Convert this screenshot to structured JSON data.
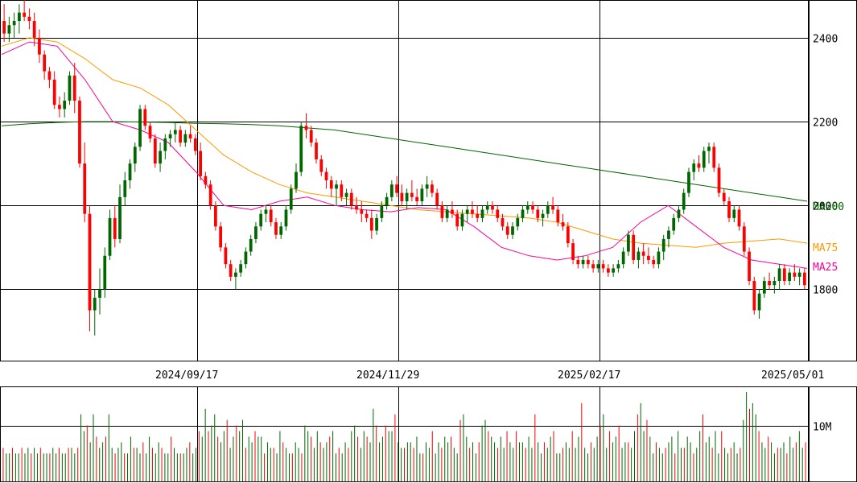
{
  "chart_data": [
    {
      "type": "candlestick",
      "x_dates": [
        "2024/09/17",
        "2024/11/29",
        "2025/02/17",
        "2025/05/01"
      ],
      "ylim": [
        1630,
        2490
      ],
      "y_ticks": [
        1800,
        2000,
        2200,
        2400
      ],
      "y_tick_labels": [
        "1800",
        "2000",
        "2200",
        "2400"
      ],
      "grid": true,
      "up_color": "#006600",
      "down_color": "#ff0000",
      "ohlc": [
        [
          2440,
          2480,
          2390,
          2410
        ],
        [
          2410,
          2450,
          2390,
          2430
        ],
        [
          2430,
          2460,
          2400,
          2440
        ],
        [
          2440,
          2480,
          2410,
          2460
        ],
        [
          2460,
          2490,
          2440,
          2450
        ],
        [
          2450,
          2470,
          2420,
          2440
        ],
        [
          2440,
          2460,
          2380,
          2400
        ],
        [
          2400,
          2420,
          2340,
          2360
        ],
        [
          2360,
          2370,
          2300,
          2320
        ],
        [
          2320,
          2330,
          2280,
          2300
        ],
        [
          2300,
          2320,
          2230,
          2240
        ],
        [
          2240,
          2260,
          2210,
          2230
        ],
        [
          2230,
          2270,
          2210,
          2250
        ],
        [
          2250,
          2320,
          2240,
          2310
        ],
        [
          2310,
          2340,
          2220,
          2250
        ],
        [
          2250,
          2260,
          2090,
          2100
        ],
        [
          2100,
          2150,
          1960,
          1980
        ],
        [
          1980,
          2000,
          1700,
          1750
        ],
        [
          1750,
          1800,
          1690,
          1780
        ],
        [
          1780,
          1850,
          1740,
          1800
        ],
        [
          1800,
          1900,
          1780,
          1880
        ],
        [
          1880,
          1990,
          1870,
          1970
        ],
        [
          1970,
          2000,
          1900,
          1920
        ],
        [
          1920,
          2050,
          1910,
          2020
        ],
        [
          2020,
          2080,
          2000,
          2060
        ],
        [
          2060,
          2110,
          2040,
          2100
        ],
        [
          2100,
          2150,
          2080,
          2140
        ],
        [
          2140,
          2240,
          2130,
          2230
        ],
        [
          2230,
          2240,
          2180,
          2190
        ],
        [
          2190,
          2200,
          2150,
          2160
        ],
        [
          2160,
          2170,
          2090,
          2100
        ],
        [
          2100,
          2150,
          2080,
          2130
        ],
        [
          2130,
          2170,
          2110,
          2160
        ],
        [
          2160,
          2180,
          2140,
          2170
        ],
        [
          2170,
          2200,
          2150,
          2180
        ],
        [
          2180,
          2190,
          2140,
          2150
        ],
        [
          2150,
          2180,
          2140,
          2170
        ],
        [
          2170,
          2190,
          2150,
          2160
        ],
        [
          2160,
          2170,
          2120,
          2130
        ],
        [
          2130,
          2150,
          2060,
          2070
        ],
        [
          2070,
          2080,
          2040,
          2050
        ],
        [
          2050,
          2060,
          1990,
          2000
        ],
        [
          2000,
          2010,
          1940,
          1950
        ],
        [
          1950,
          1960,
          1890,
          1900
        ],
        [
          1900,
          1910,
          1850,
          1860
        ],
        [
          1860,
          1870,
          1820,
          1830
        ],
        [
          1830,
          1850,
          1800,
          1840
        ],
        [
          1840,
          1870,
          1830,
          1860
        ],
        [
          1860,
          1900,
          1850,
          1890
        ],
        [
          1890,
          1930,
          1880,
          1920
        ],
        [
          1920,
          1960,
          1910,
          1950
        ],
        [
          1950,
          1990,
          1940,
          1980
        ],
        [
          1980,
          2000,
          1960,
          1990
        ],
        [
          1990,
          2000,
          1950,
          1960
        ],
        [
          1960,
          1970,
          1920,
          1930
        ],
        [
          1930,
          1960,
          1920,
          1950
        ],
        [
          1950,
          2000,
          1940,
          1990
        ],
        [
          1990,
          2050,
          1980,
          2040
        ],
        [
          2040,
          2100,
          2030,
          2080
        ],
        [
          2080,
          2200,
          2070,
          2190
        ],
        [
          2190,
          2220,
          2160,
          2180
        ],
        [
          2180,
          2190,
          2140,
          2150
        ],
        [
          2150,
          2160,
          2100,
          2110
        ],
        [
          2110,
          2120,
          2070,
          2080
        ],
        [
          2080,
          2090,
          2040,
          2060
        ],
        [
          2060,
          2070,
          2020,
          2040
        ],
        [
          2040,
          2060,
          2000,
          2050
        ],
        [
          2050,
          2060,
          2010,
          2020
        ],
        [
          2020,
          2040,
          2000,
          2030
        ],
        [
          2030,
          2040,
          1990,
          2000
        ],
        [
          2000,
          2020,
          1980,
          1990
        ],
        [
          1990,
          2010,
          1960,
          1980
        ],
        [
          1980,
          1990,
          1960,
          1970
        ],
        [
          1970,
          1990,
          1920,
          1940
        ],
        [
          1940,
          1980,
          1930,
          1970
        ],
        [
          1970,
          2010,
          1960,
          2000
        ],
        [
          2000,
          2030,
          1990,
          2020
        ],
        [
          2020,
          2060,
          2010,
          2050
        ],
        [
          2050,
          2070,
          2020,
          2030
        ],
        [
          2030,
          2050,
          2000,
          2010
        ],
        [
          2010,
          2040,
          1990,
          2030
        ],
        [
          2030,
          2060,
          2010,
          2020
        ],
        [
          2020,
          2040,
          2000,
          2010
        ],
        [
          2010,
          2050,
          2000,
          2040
        ],
        [
          2040,
          2070,
          2020,
          2050
        ],
        [
          2050,
          2060,
          2020,
          2030
        ],
        [
          2030,
          2040,
          1990,
          2000
        ],
        [
          2000,
          2010,
          1960,
          1970
        ],
        [
          1970,
          2000,
          1960,
          1990
        ],
        [
          1990,
          2010,
          1970,
          1980
        ],
        [
          1980,
          1990,
          1940,
          1950
        ],
        [
          1950,
          1990,
          1940,
          1980
        ],
        [
          1980,
          2000,
          1960,
          1990
        ],
        [
          1990,
          2010,
          1970,
          1980
        ],
        [
          1980,
          2000,
          1960,
          1970
        ],
        [
          1970,
          2000,
          1960,
          1990
        ],
        [
          1990,
          2010,
          1980,
          2000
        ],
        [
          2000,
          2010,
          1980,
          1990
        ],
        [
          1990,
          2000,
          1960,
          1970
        ],
        [
          1970,
          1980,
          1940,
          1950
        ],
        [
          1950,
          1960,
          1920,
          1930
        ],
        [
          1930,
          1960,
          1920,
          1950
        ],
        [
          1950,
          1980,
          1940,
          1970
        ],
        [
          1970,
          2000,
          1960,
          1990
        ],
        [
          1990,
          2010,
          1980,
          2000
        ],
        [
          2000,
          2010,
          1980,
          1990
        ],
        [
          1990,
          2000,
          1960,
          1970
        ],
        [
          1970,
          1990,
          1950,
          1980
        ],
        [
          1980,
          2010,
          1970,
          2000
        ],
        [
          2000,
          2020,
          1980,
          1990
        ],
        [
          1990,
          2000,
          1950,
          1960
        ],
        [
          1960,
          1980,
          1940,
          1950
        ],
        [
          1950,
          1960,
          1900,
          1910
        ],
        [
          1910,
          1920,
          1860,
          1870
        ],
        [
          1870,
          1880,
          1850,
          1860
        ],
        [
          1860,
          1880,
          1850,
          1870
        ],
        [
          1870,
          1880,
          1850,
          1860
        ],
        [
          1860,
          1870,
          1840,
          1850
        ],
        [
          1850,
          1870,
          1840,
          1860
        ],
        [
          1860,
          1870,
          1840,
          1850
        ],
        [
          1850,
          1860,
          1830,
          1840
        ],
        [
          1840,
          1860,
          1830,
          1850
        ],
        [
          1850,
          1870,
          1840,
          1860
        ],
        [
          1860,
          1900,
          1850,
          1890
        ],
        [
          1890,
          1940,
          1880,
          1930
        ],
        [
          1930,
          1940,
          1860,
          1870
        ],
        [
          1870,
          1900,
          1850,
          1890
        ],
        [
          1890,
          1910,
          1860,
          1880
        ],
        [
          1880,
          1900,
          1860,
          1870
        ],
        [
          1870,
          1880,
          1850,
          1860
        ],
        [
          1860,
          1900,
          1850,
          1890
        ],
        [
          1890,
          1930,
          1870,
          1920
        ],
        [
          1920,
          1950,
          1900,
          1940
        ],
        [
          1940,
          1980,
          1930,
          1970
        ],
        [
          1970,
          2000,
          1960,
          1990
        ],
        [
          1990,
          2040,
          1980,
          2030
        ],
        [
          2030,
          2090,
          2020,
          2080
        ],
        [
          2080,
          2110,
          2060,
          2100
        ],
        [
          2100,
          2120,
          2080,
          2090
        ],
        [
          2090,
          2140,
          2080,
          2130
        ],
        [
          2130,
          2150,
          2100,
          2140
        ],
        [
          2140,
          2150,
          2080,
          2090
        ],
        [
          2090,
          2100,
          2020,
          2030
        ],
        [
          2030,
          2040,
          2000,
          2010
        ],
        [
          2010,
          2020,
          1960,
          1970
        ],
        [
          1970,
          2000,
          1960,
          1990
        ],
        [
          1990,
          2000,
          1940,
          1950
        ],
        [
          1950,
          1960,
          1880,
          1890
        ],
        [
          1890,
          1900,
          1810,
          1820
        ],
        [
          1820,
          1830,
          1740,
          1750
        ],
        [
          1750,
          1800,
          1730,
          1790
        ],
        [
          1790,
          1830,
          1780,
          1820
        ],
        [
          1820,
          1840,
          1800,
          1810
        ],
        [
          1810,
          1830,
          1790,
          1820
        ],
        [
          1820,
          1860,
          1800,
          1850
        ],
        [
          1850,
          1860,
          1810,
          1820
        ],
        [
          1820,
          1850,
          1810,
          1840
        ],
        [
          1840,
          1860,
          1820,
          1830
        ],
        [
          1830,
          1850,
          1810,
          1840
        ],
        [
          1840,
          1850,
          1800,
          1810
        ]
      ],
      "ma": [
        {
          "name": "MA200",
          "color": "#006600",
          "values": [
            2190,
            2195,
            2198,
            2200,
            2200,
            2199,
            2198,
            2196,
            2195,
            2193,
            2190,
            2185,
            2180,
            2170,
            2160,
            2150,
            2140,
            2130,
            2120,
            2110,
            2100,
            2090,
            2080,
            2070,
            2060,
            2050,
            2040,
            2030,
            2020,
            2010
          ]
        },
        {
          "name": "MA75",
          "color": "#ff9900",
          "values": [
            2380,
            2400,
            2390,
            2350,
            2300,
            2280,
            2240,
            2180,
            2120,
            2080,
            2050,
            2030,
            2020,
            2010,
            2000,
            1990,
            1985,
            1980,
            1975,
            1970,
            1960,
            1940,
            1920,
            1910,
            1905,
            1900,
            1910,
            1915,
            1920,
            1910
          ]
        },
        {
          "name": "MA25",
          "color": "#ff0099",
          "values": [
            2360,
            2390,
            2380,
            2300,
            2200,
            2180,
            2150,
            2080,
            2000,
            1990,
            2010,
            2020,
            2000,
            1990,
            1985,
            1995,
            1990,
            1950,
            1900,
            1880,
            1870,
            1880,
            1900,
            1960,
            2000,
            1950,
            1900,
            1870,
            1860,
            1850
          ]
        }
      ]
    },
    {
      "type": "bar",
      "name": "volume",
      "y_tick_labels": [
        "10M"
      ],
      "up_color": "#006600",
      "down_color": "#ff0000",
      "values": [
        6,
        5,
        5,
        6,
        5,
        5,
        6,
        5,
        6,
        5,
        6,
        5,
        6,
        5,
        5,
        5,
        6,
        5,
        6,
        5,
        5,
        6,
        6,
        5,
        6,
        12,
        9,
        10,
        7,
        12,
        8,
        6,
        7,
        8,
        12,
        6,
        5,
        6,
        7,
        5,
        5,
        8,
        6,
        6,
        5,
        7,
        5,
        8,
        6,
        5,
        7,
        6,
        5,
        5,
        8,
        6,
        5,
        5,
        5,
        6,
        7,
        5,
        6,
        9,
        8,
        13,
        9,
        10,
        12,
        8,
        7,
        9,
        11,
        6,
        8,
        10,
        9,
        11,
        6,
        8,
        7,
        9,
        8,
        8,
        5,
        7,
        6,
        6,
        5,
        9,
        7,
        6,
        5,
        5,
        7,
        6,
        5,
        10,
        9,
        8,
        6,
        9,
        7,
        6,
        7,
        8,
        9,
        5,
        6,
        5,
        7,
        6,
        9,
        10,
        8,
        6,
        9,
        8,
        7,
        13,
        10,
        7,
        8,
        10,
        9,
        9,
        12,
        7,
        6,
        6,
        7,
        7,
        6,
        8,
        5,
        5,
        7,
        6,
        9,
        5,
        7,
        6,
        8,
        7,
        8,
        6,
        5,
        11,
        12,
        8,
        6,
        7,
        5,
        7,
        10,
        11,
        9,
        8,
        7,
        6,
        8,
        6,
        9,
        7,
        6,
        9,
        7,
        7,
        6,
        8,
        6,
        12,
        7,
        5,
        7,
        6,
        8,
        9,
        5,
        5,
        6,
        7,
        6,
        9,
        6,
        8,
        14,
        6,
        5,
        7,
        6,
        8,
        10,
        12,
        6,
        9,
        7,
        8,
        10,
        6,
        7,
        7,
        6,
        9,
        12,
        14,
        9,
        11,
        8,
        5,
        7,
        6,
        5,
        6,
        7,
        8,
        5,
        9,
        6,
        6,
        8,
        7,
        5,
        6,
        9,
        12,
        7,
        8,
        6,
        9,
        5,
        9,
        6,
        5,
        6,
        7,
        5,
        6,
        11,
        16,
        13,
        14,
        12,
        9,
        7,
        6,
        8,
        7,
        5,
        6,
        6,
        7,
        5,
        8,
        6,
        7,
        9,
        6,
        7
      ]
    }
  ],
  "labels": {
    "ma200": "MA200",
    "ma75": "MA75",
    "ma25": "MA25",
    "vol_tick": "10M"
  }
}
